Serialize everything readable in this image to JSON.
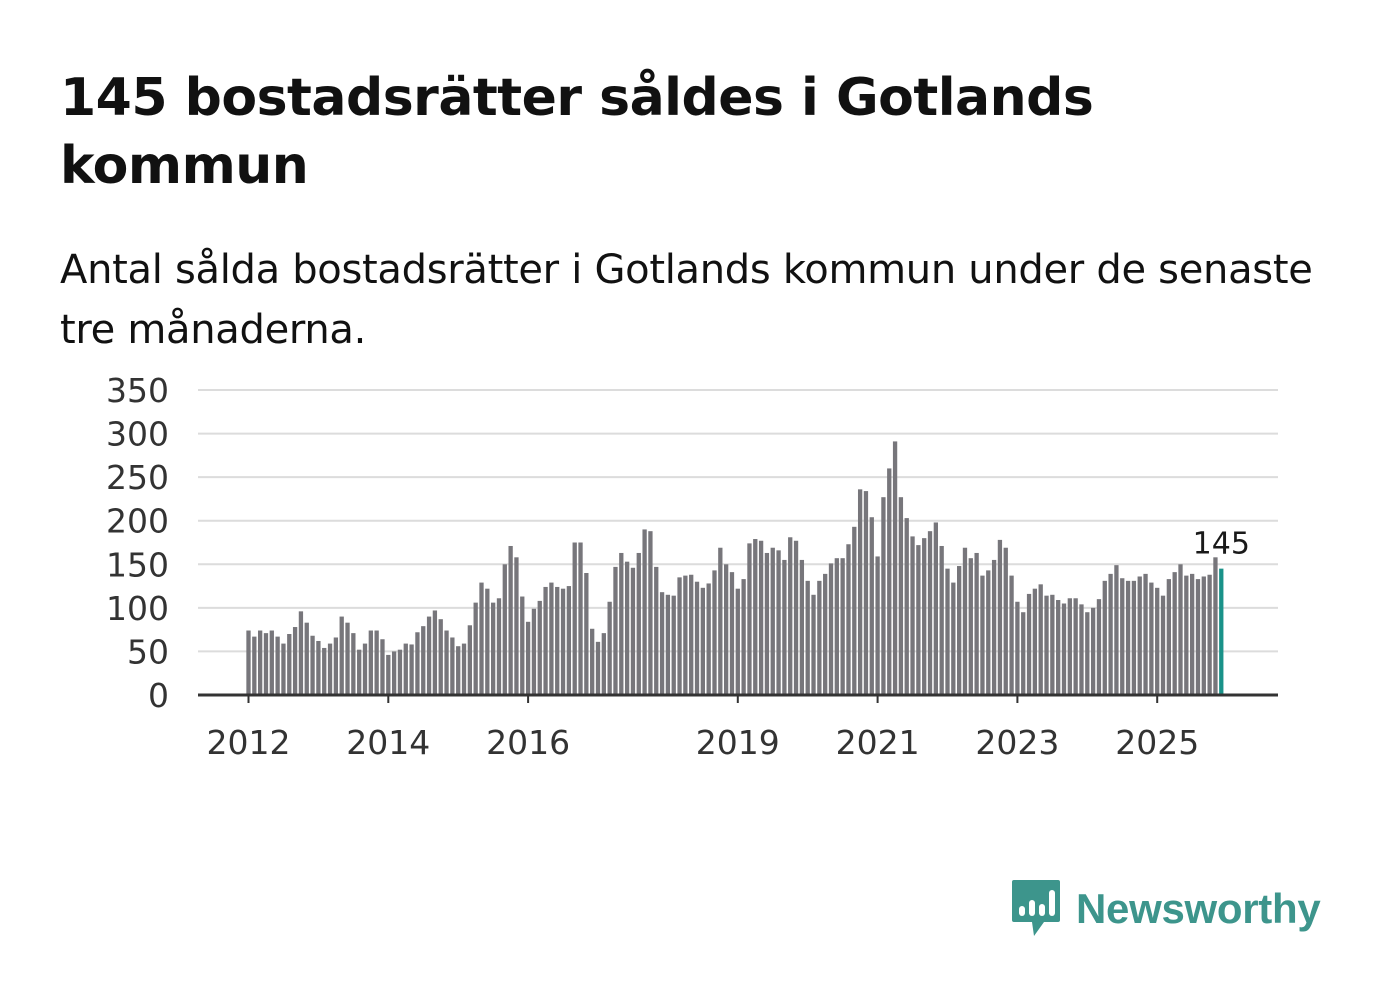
{
  "title": "145 bostadsrätter såldes i Gotlands kommun",
  "subtitle": "Antal sålda bostadsrätter i Gotlands kommun under de senaste tre månaderna.",
  "brand": {
    "name": "Newsworthy",
    "color": "#3d958c",
    "icon": "newsworthy-chart-bubble-icon"
  },
  "colors": {
    "bar": "#77767b",
    "highlight": "#1a9289",
    "grid": "#dcdcdc",
    "axis": "#333333"
  },
  "chart_data": {
    "type": "bar",
    "title": "145 bostadsrätter såldes i Gotlands kommun",
    "subtitle": "Antal sålda bostadsrätter i Gotlands kommun under de senaste tre månaderna.",
    "xlabel": "",
    "ylabel": "",
    "ylim": [
      0,
      350
    ],
    "yticks": [
      0,
      50,
      100,
      150,
      200,
      250,
      300,
      350
    ],
    "grid": true,
    "xtick_labels": [
      {
        "label": "2012",
        "index": 0
      },
      {
        "label": "2014",
        "index": 24
      },
      {
        "label": "2016",
        "index": 48
      },
      {
        "label": "2019",
        "index": 84
      },
      {
        "label": "2021",
        "index": 108
      },
      {
        "label": "2023",
        "index": 132
      },
      {
        "label": "2025",
        "index": 156
      }
    ],
    "highlight_index": 167,
    "highlight_label": "145",
    "values": [
      74,
      67,
      74,
      71,
      74,
      67,
      59,
      70,
      78,
      96,
      83,
      68,
      62,
      54,
      59,
      66,
      90,
      83,
      71,
      52,
      59,
      74,
      74,
      64,
      46,
      50,
      52,
      59,
      58,
      72,
      79,
      90,
      97,
      87,
      74,
      66,
      56,
      59,
      80,
      106,
      129,
      122,
      106,
      111,
      150,
      171,
      158,
      113,
      84,
      99,
      108,
      124,
      129,
      124,
      122,
      125,
      175,
      175,
      140,
      76,
      61,
      71,
      107,
      147,
      163,
      153,
      146,
      163,
      190,
      188,
      147,
      118,
      115,
      114,
      135,
      137,
      138,
      130,
      123,
      128,
      143,
      169,
      150,
      141,
      122,
      133,
      174,
      179,
      177,
      163,
      169,
      166,
      155,
      181,
      177,
      155,
      131,
      115,
      131,
      139,
      151,
      157,
      157,
      173,
      193,
      236,
      234,
      204,
      159,
      227,
      260,
      291,
      227,
      203,
      182,
      172,
      180,
      188,
      198,
      171,
      145,
      129,
      148,
      169,
      157,
      163,
      137,
      143,
      155,
      178,
      169,
      137,
      107,
      95,
      116,
      122,
      127,
      114,
      115,
      109,
      105,
      111,
      111,
      104,
      95,
      100,
      110,
      131,
      139,
      149,
      134,
      131,
      131,
      136,
      139,
      129,
      123,
      114,
      133,
      141,
      150,
      137,
      139,
      133,
      136,
      138,
      158,
      145
    ]
  }
}
